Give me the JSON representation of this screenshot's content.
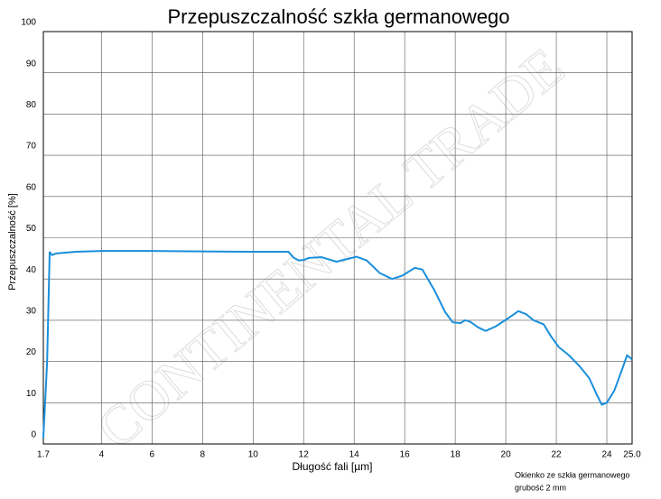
{
  "chart_data": {
    "type": "line",
    "title": "Przepuszczalność szkła germanowego",
    "xlabel": "Długość fali [µm]",
    "ylabel": "Przepuszczalność [%]",
    "annotations": [
      "Okienko ze szkła germanowego",
      "grubość 2 mm"
    ],
    "watermark": "CONTINENTAL TRADE",
    "color": "#1a8fdc",
    "grid": true,
    "x": [
      1.7,
      1.85,
      1.95,
      2.05,
      2.2,
      3,
      4,
      6,
      8,
      10,
      11.4,
      11.6,
      11.8,
      12,
      12.2,
      12.7,
      13.3,
      13.7,
      14.1,
      14.5,
      15,
      15.5,
      15.9,
      16.4,
      16.7,
      17.2,
      17.6,
      17.9,
      18.2,
      18.4,
      18.6,
      18.9,
      19.2,
      19.6,
      20.1,
      20.5,
      20.8,
      21.1,
      21.5,
      21.8,
      22.1,
      22.5,
      22.9,
      23.3,
      23.6,
      23.8,
      24,
      24.3,
      24.6,
      24.8,
      25
    ],
    "values": [
      1.5,
      20,
      46.5,
      45.8,
      46.2,
      46.6,
      46.8,
      46.8,
      46.7,
      46.6,
      46.6,
      45.2,
      44.5,
      44.6,
      45.1,
      45.3,
      44.2,
      44.8,
      45.4,
      44.5,
      41.5,
      40,
      40.8,
      42.7,
      42.3,
      37,
      32,
      29.5,
      29.3,
      30,
      29.6,
      28.3,
      27.4,
      28.5,
      30.5,
      32.2,
      31.5,
      30,
      29,
      26,
      23.5,
      21.5,
      19,
      16,
      12,
      9.5,
      10,
      13,
      18,
      21.5,
      20.5
    ],
    "xlim": [
      1.7,
      25
    ],
    "ylim": [
      0,
      100
    ],
    "xticks": [
      1.7,
      4,
      6,
      8,
      10,
      12,
      14,
      16,
      18,
      20,
      22,
      24,
      {
        "value": 25,
        "label": "25.0"
      }
    ],
    "yticks": [
      0,
      10,
      20,
      30,
      40,
      50,
      60,
      70,
      80,
      90,
      100
    ]
  }
}
